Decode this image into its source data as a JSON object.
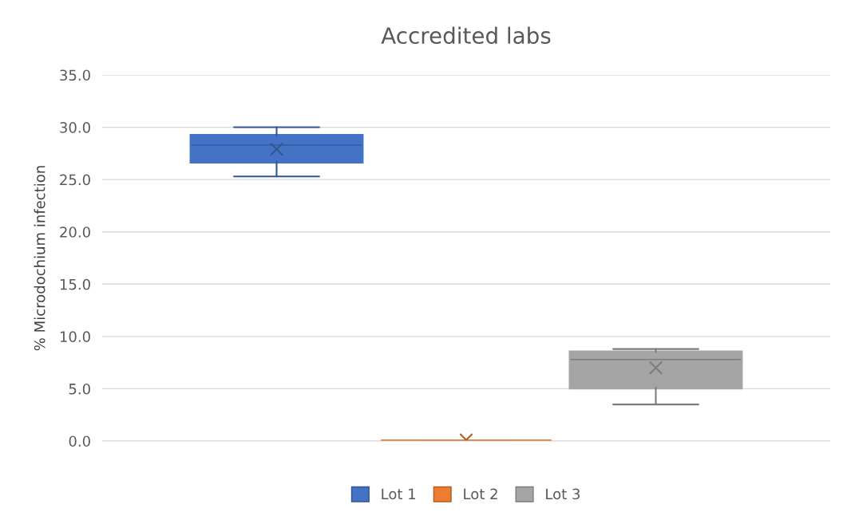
{
  "chart_data": {
    "type": "box",
    "title": "Accredited labs",
    "ylabel": "% Microdochium infection",
    "categories": [
      null
    ],
    "series": [
      {
        "name": "Lot 1",
        "color": "#4472c4",
        "boxes": [
          {
            "low": 25.3,
            "q1": 26.7,
            "median": 28.3,
            "q3": 29.2,
            "high": 30.0,
            "mean": 27.9
          }
        ]
      },
      {
        "name": "Lot 2",
        "color": "#ed7d31",
        "boxes": [
          {
            "low": 0,
            "q1": 0,
            "median": 0,
            "q3": 0,
            "high": 0,
            "mean": 0.1
          }
        ]
      },
      {
        "name": "Lot 3",
        "color": "#a5a5a5",
        "boxes": [
          {
            "low": 3.5,
            "q1": 5.1,
            "median": 7.8,
            "q3": 8.5,
            "high": 8.8,
            "mean": 7.0
          }
        ]
      }
    ],
    "ylim": [
      0,
      35
    ],
    "yticks": [
      {
        "value": 0,
        "label": "0.0"
      },
      {
        "value": 5,
        "label": "5.0"
      },
      {
        "value": 10,
        "label": "10.0"
      },
      {
        "value": 15,
        "label": "15.0"
      },
      {
        "value": 20,
        "label": "20.0"
      },
      {
        "value": 25,
        "label": "25.0"
      },
      {
        "value": 30,
        "label": "30.0"
      },
      {
        "value": 35,
        "label": "35.0"
      }
    ],
    "grid": "y",
    "legend": "bottom",
    "marker": "cross",
    "tick_labels": "y"
  }
}
